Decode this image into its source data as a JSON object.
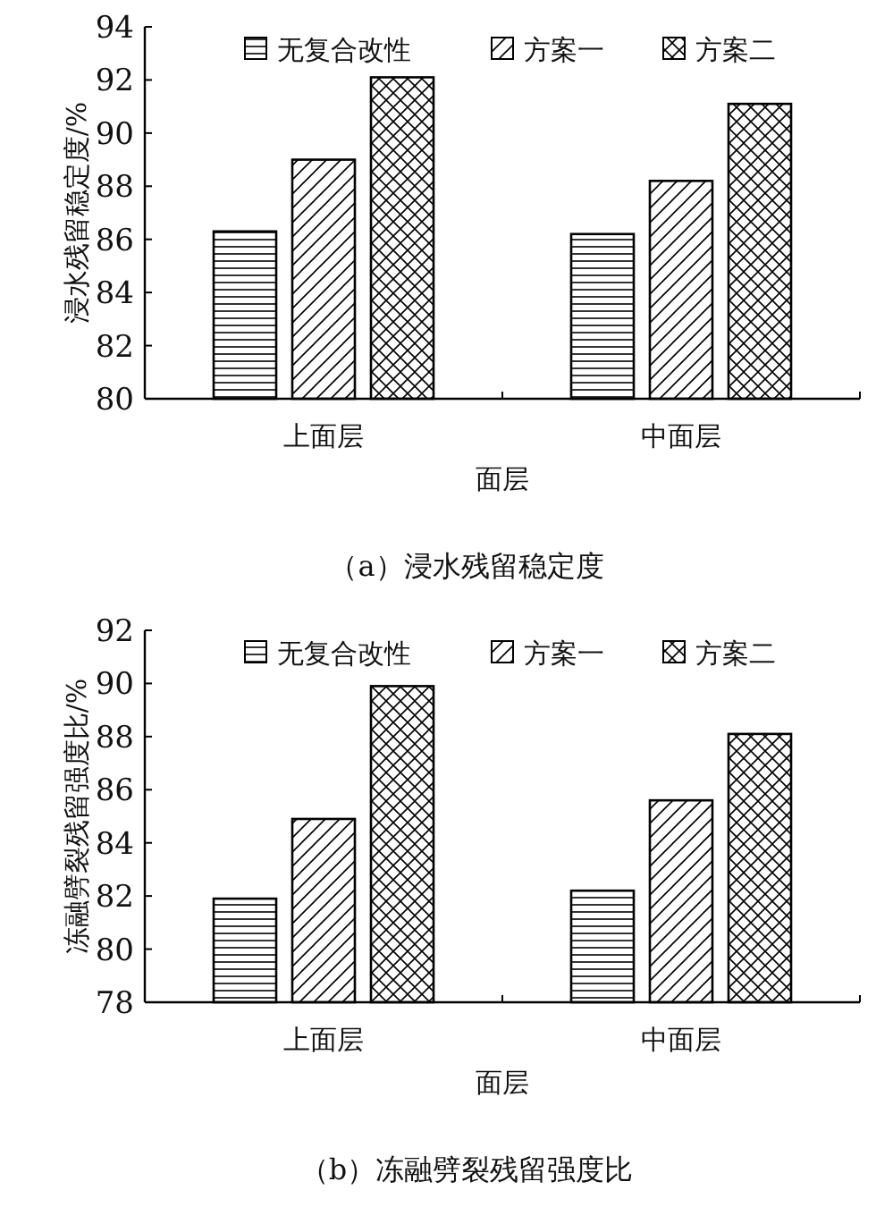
{
  "chart_data": [
    {
      "type": "bar",
      "title": "（a）浸水残留稳定度",
      "xlabel": "面层",
      "ylabel": "浸水残留稳定度/%",
      "categories": [
        "上面层",
        "中面层"
      ],
      "series": [
        {
          "name": "无复合改性",
          "color": "#000000",
          "values": [
            86.3,
            86.2
          ]
        },
        {
          "name": "方案一",
          "color": "#000000",
          "values": [
            89.0,
            88.2
          ]
        },
        {
          "name": "方案二",
          "color": "#000000",
          "values": [
            92.1,
            91.1
          ]
        }
      ],
      "ylim": [
        80,
        94
      ],
      "yticks": [
        80,
        82,
        84,
        86,
        88,
        90,
        92,
        94
      ],
      "legend": "top",
      "grid": false
    },
    {
      "type": "bar",
      "title": "（b）冻融劈裂残留强度比",
      "xlabel": "面层",
      "ylabel": "冻融劈裂残留强度比/%",
      "categories": [
        "上面层",
        "中面层"
      ],
      "series": [
        {
          "name": "无复合改性",
          "color": "#000000",
          "values": [
            81.9,
            82.2
          ]
        },
        {
          "name": "方案一",
          "color": "#000000",
          "values": [
            84.9,
            85.6
          ]
        },
        {
          "name": "方案二",
          "color": "#000000",
          "values": [
            89.9,
            88.1
          ]
        }
      ],
      "ylim": [
        78,
        92
      ],
      "yticks": [
        78,
        80,
        82,
        84,
        86,
        88,
        90,
        92
      ],
      "legend": "top",
      "grid": false
    }
  ]
}
